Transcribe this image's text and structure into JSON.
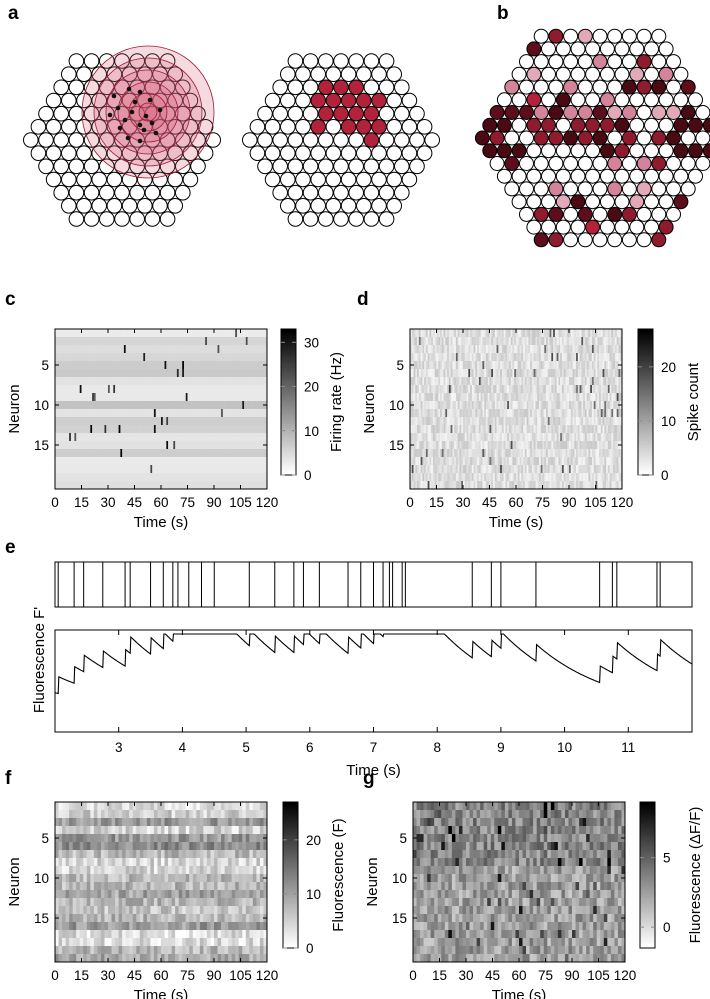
{
  "panels": {
    "a": "a",
    "b": "b",
    "c": "c",
    "d": "d",
    "e": "e",
    "f": "f",
    "g": "g"
  },
  "colors": {
    "electrode_active": "#b3223b",
    "electrode_dark": "#4a0a14",
    "electrode_mid": "#8f1b2e",
    "electrode_light": "#d4849a",
    "halo": "#d05870"
  },
  "chart_data": [
    {
      "id": "c",
      "type": "heatmap",
      "xlabel": "Time (s)",
      "ylabel": "Neuron",
      "xticks": [
        "0",
        "15",
        "30",
        "45",
        "60",
        "75",
        "90",
        "105",
        "120"
      ],
      "yticks": [
        "5",
        "10",
        "15"
      ],
      "colorbar": {
        "label": "Firing rate (Hz)",
        "ticks": [
          "0",
          "10",
          "20",
          "30"
        ],
        "range": [
          0,
          33
        ]
      }
    },
    {
      "id": "d",
      "type": "heatmap",
      "xlabel": "Time (s)",
      "ylabel": "Neuron",
      "xticks": [
        "0",
        "15",
        "30",
        "45",
        "60",
        "75",
        "90",
        "105",
        "120"
      ],
      "yticks": [
        "5",
        "10",
        "15"
      ],
      "colorbar": {
        "label": "Spike count",
        "ticks": [
          "0",
          "10",
          "20"
        ],
        "range": [
          0,
          27
        ]
      }
    },
    {
      "id": "e",
      "type": "line",
      "xlabel": "Time (s)",
      "ylabel": "Fluorescence F'",
      "xticks": [
        "3",
        "4",
        "5",
        "6",
        "7",
        "8",
        "9",
        "10",
        "11"
      ],
      "xlim": [
        2,
        12
      ],
      "spike_times": [
        2.05,
        2.3,
        2.45,
        2.75,
        3.1,
        3.18,
        3.5,
        3.7,
        3.85,
        3.93,
        4.1,
        4.3,
        4.5,
        5.05,
        5.45,
        5.75,
        5.9,
        6.15,
        6.6,
        6.8,
        7.0,
        7.15,
        7.25,
        7.3,
        7.45,
        7.5,
        8.55,
        8.85,
        9.0,
        9.55,
        10.55,
        10.75,
        10.82,
        11.45,
        11.5
      ]
    },
    {
      "id": "f",
      "type": "heatmap",
      "xlabel": "Time (s)",
      "ylabel": "Neuron",
      "xticks": [
        "0",
        "15",
        "30",
        "45",
        "60",
        "75",
        "90",
        "105",
        "120"
      ],
      "yticks": [
        "5",
        "10",
        "15"
      ],
      "colorbar": {
        "label": "Fluorescence (F)",
        "ticks": [
          "0",
          "10",
          "20"
        ],
        "range": [
          0,
          27
        ]
      }
    },
    {
      "id": "g",
      "type": "heatmap",
      "xlabel": "Time (s)",
      "ylabel": "Neuron",
      "xticks": [
        "0",
        "15",
        "30",
        "45",
        "60",
        "75",
        "90",
        "105",
        "120"
      ],
      "yticks": [
        "5",
        "10",
        "15"
      ],
      "colorbar": {
        "label": "Fluorescence (ΔF/F)",
        "ticks": [
          "0",
          "5"
        ],
        "range": [
          -1.5,
          9
        ]
      }
    }
  ]
}
